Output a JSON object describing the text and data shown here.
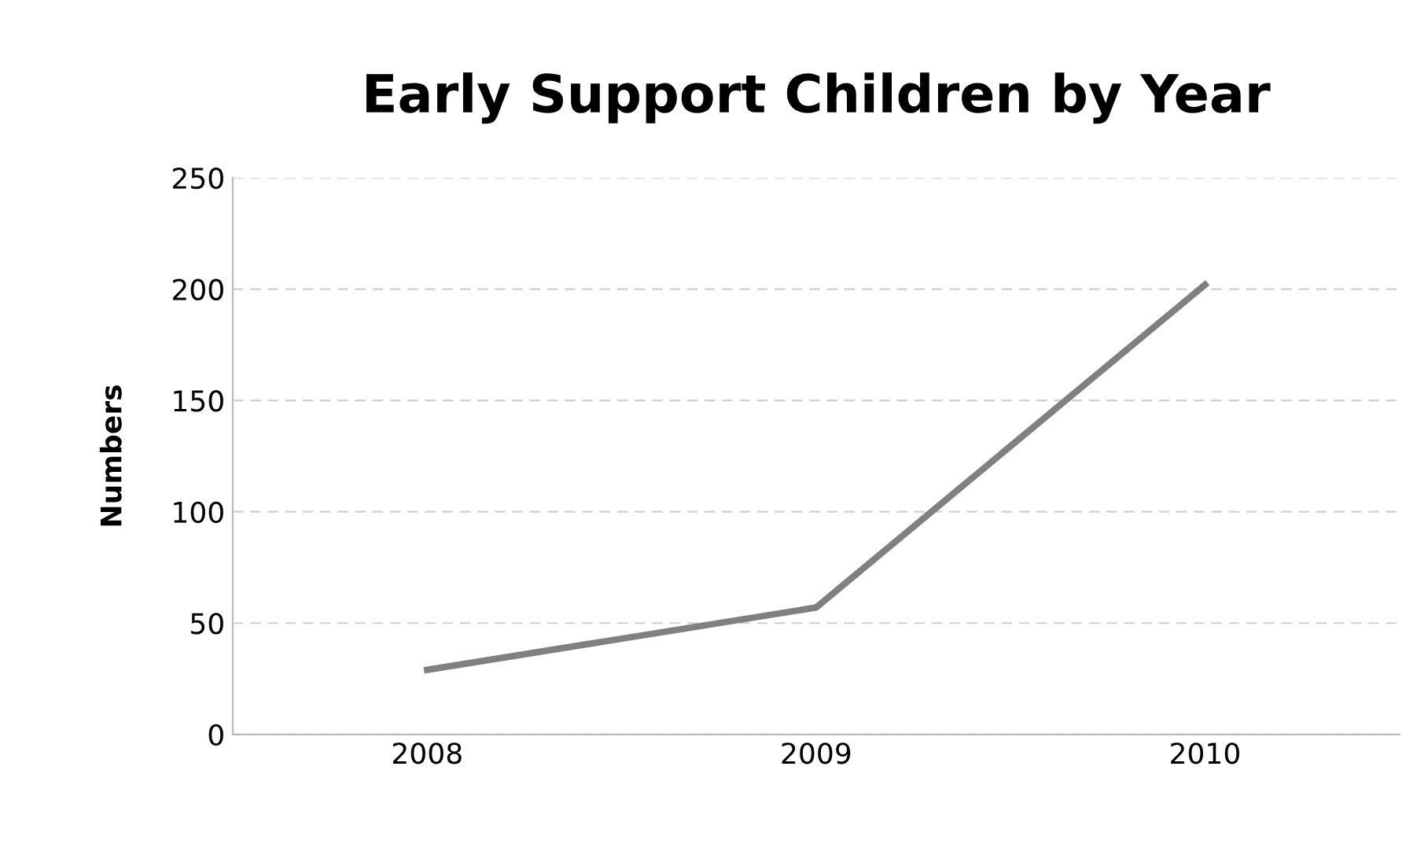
{
  "chart_data": {
    "type": "line",
    "title": "Early Support Children by Year",
    "ylabel": "Numbers",
    "categories": [
      "2008",
      "2009",
      "2010"
    ],
    "series": [
      {
        "color": "#808080",
        "values": [
          29,
          57,
          202
        ]
      }
    ],
    "ylim": [
      0,
      250
    ],
    "yticks": [
      0,
      50,
      100,
      150,
      200,
      250
    ],
    "grid": "y",
    "legend": false,
    "marker": "none",
    "line_style": "solid"
  }
}
